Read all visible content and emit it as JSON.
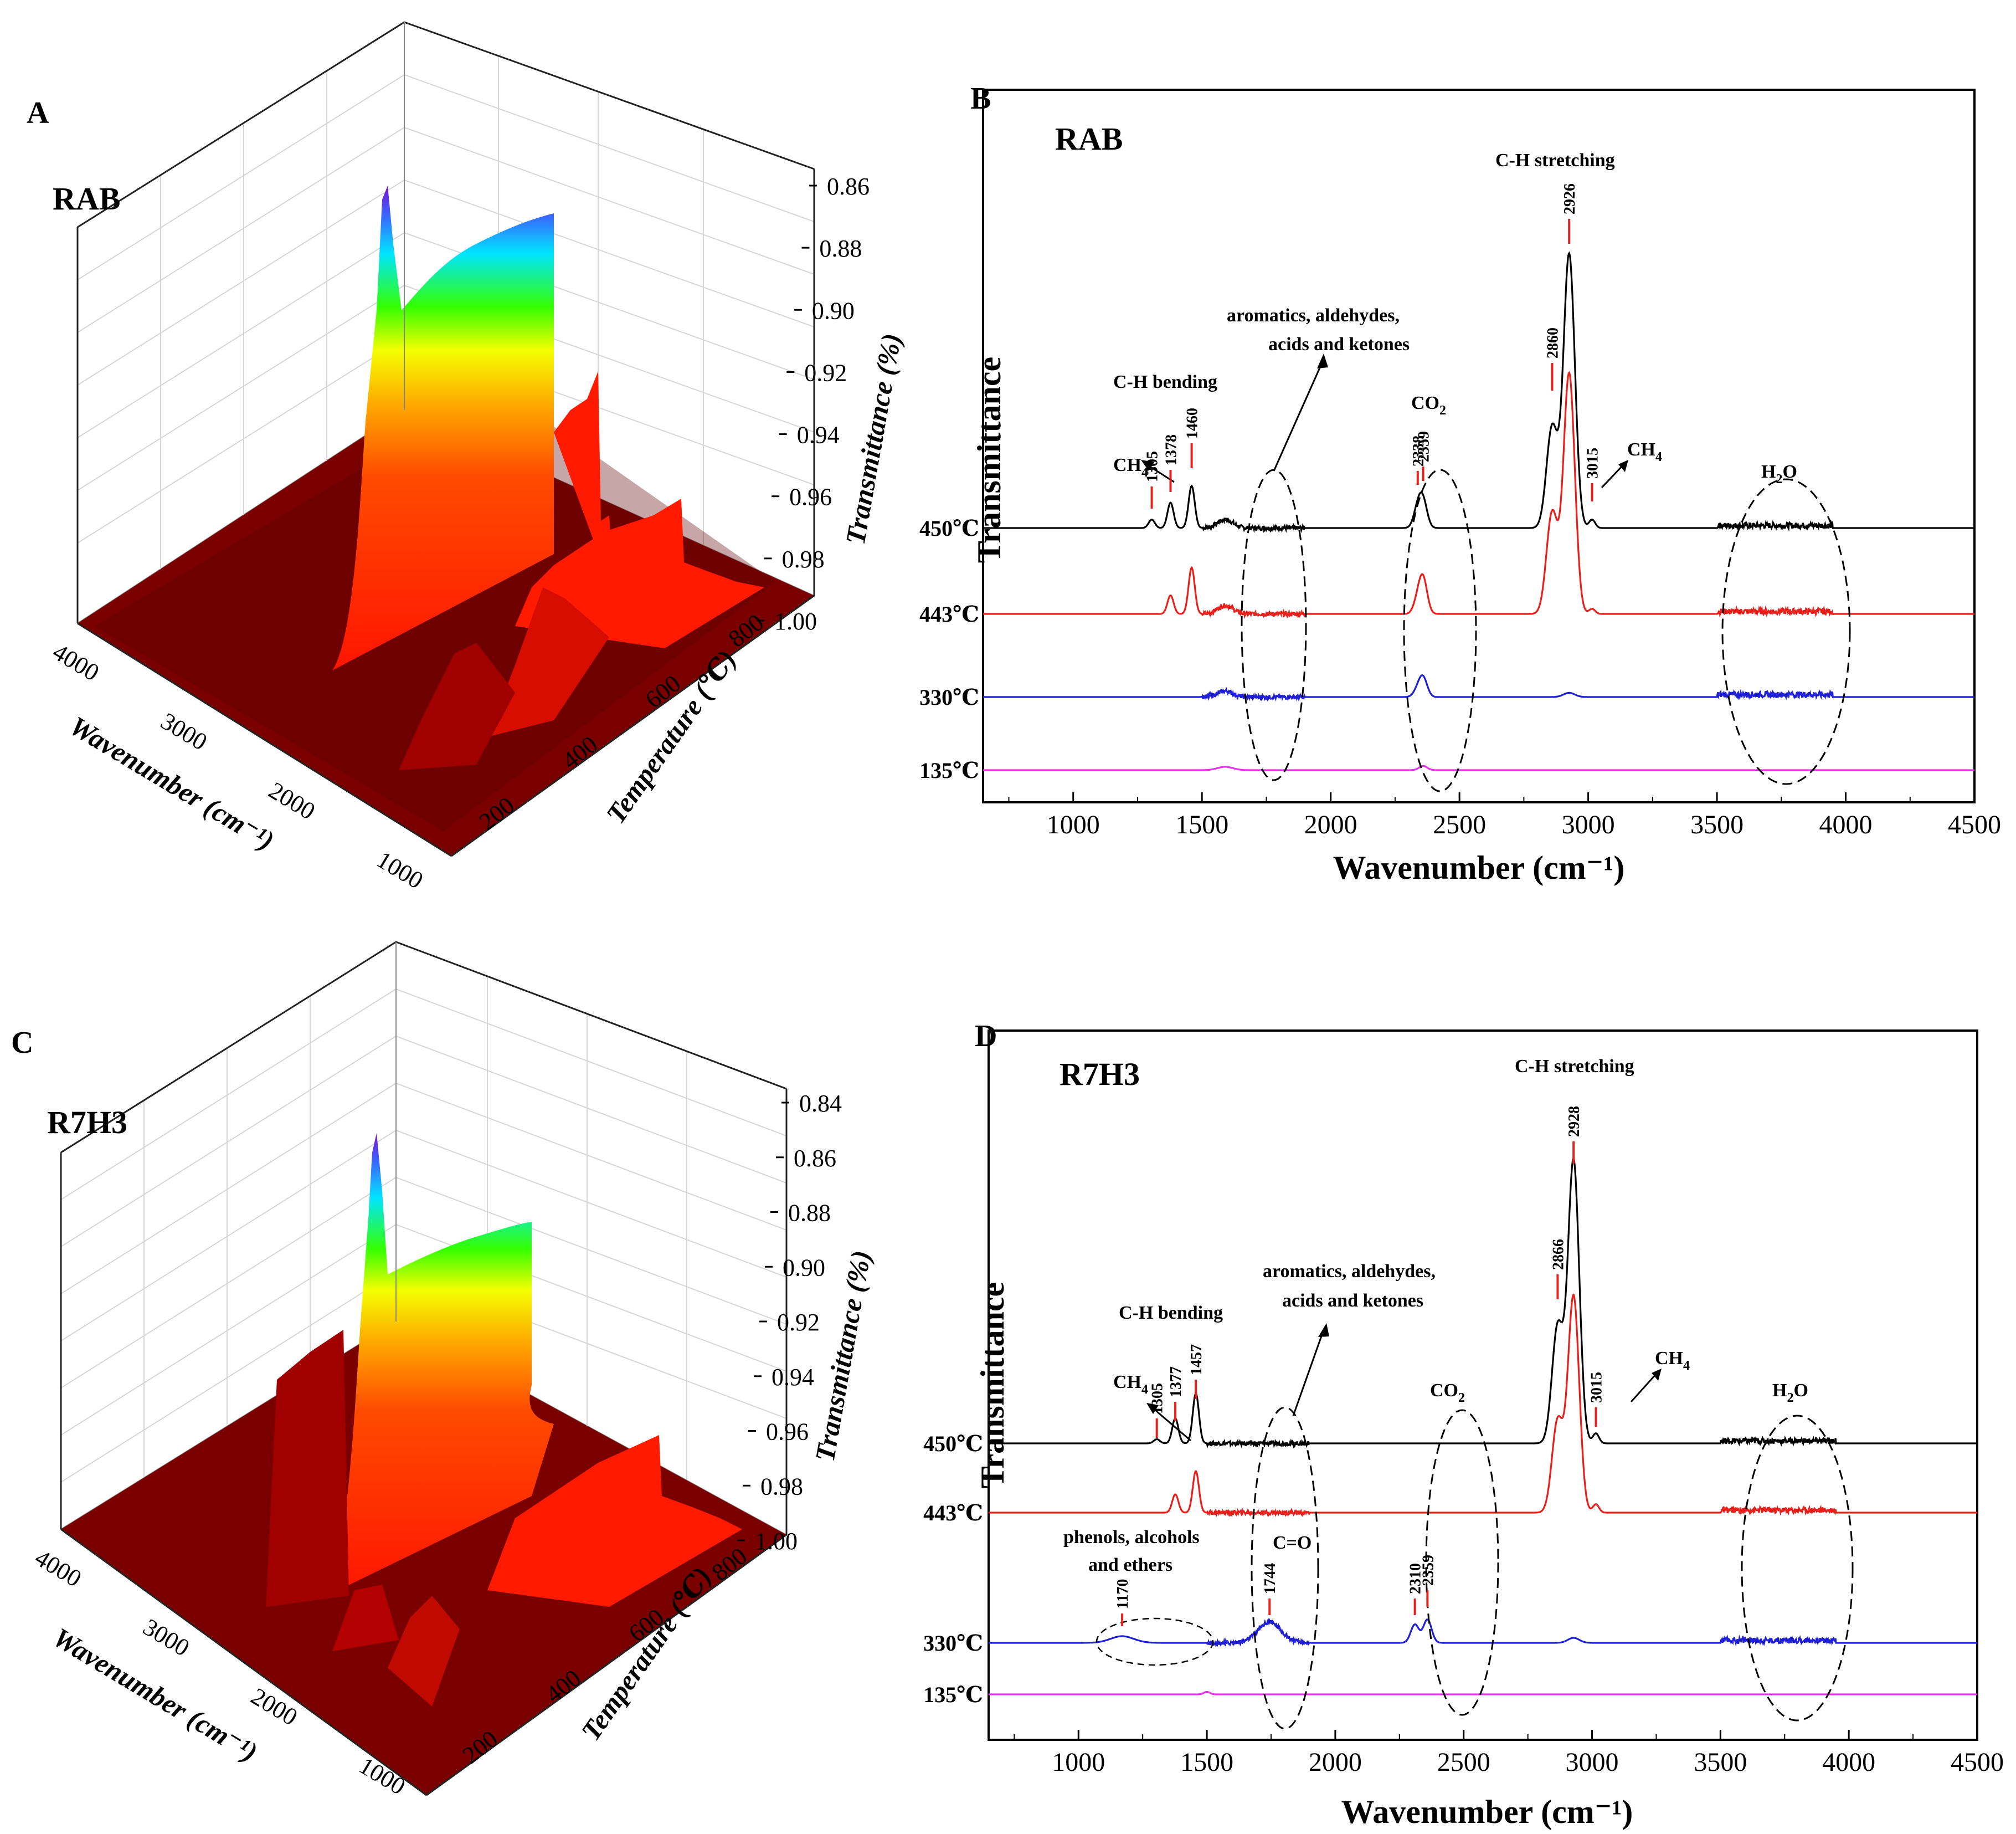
{
  "panels": [
    {
      "letter": "A",
      "sample": "RAB",
      "z_title": "Transmittance (%)",
      "z_ticks": [
        "0.86",
        "0.88",
        "0.90",
        "0.92",
        "0.94",
        "0.96",
        "0.98",
        "1.00"
      ],
      "x_title": "Wavenumber (cm⁻¹)",
      "x_ticks": [
        "4000",
        "3000",
        "2000",
        "1000"
      ],
      "y_title": "Temperature (℃)",
      "y_ticks": [
        "200",
        "400",
        "600",
        "800"
      ]
    },
    {
      "letter": "C",
      "sample": "R7H3",
      "z_title": "Transmittance (%)",
      "z_ticks": [
        "0.84",
        "0.86",
        "0.88",
        "0.90",
        "0.92",
        "0.94",
        "0.96",
        "0.98",
        "1.00"
      ],
      "x_title": "Wavenumber (cm⁻¹)",
      "x_ticks": [
        "4000",
        "3000",
        "2000",
        "1000"
      ],
      "y_title": "Temperature (℃)",
      "y_ticks": [
        "200",
        "400",
        "600",
        "800"
      ]
    }
  ],
  "chart_data": [
    {
      "panel": "B",
      "sample": "RAB",
      "type": "line",
      "xlabel": "Wavenumber (cm⁻¹)",
      "ylabel": "Transmittance",
      "xlim": [
        650,
        4500
      ],
      "x_ticks": [
        1000,
        1500,
        2000,
        2500,
        3000,
        3500,
        4000,
        4500
      ],
      "series": [
        {
          "name": "450℃",
          "color": "#000000",
          "peaks": [
            [
              1305,
              0.1
            ],
            [
              1378,
              0.3
            ],
            [
              1460,
              0.5
            ],
            [
              1590,
              0.1
            ],
            [
              2338,
              0.22
            ],
            [
              2359,
              0.3
            ],
            [
              2860,
              1.2
            ],
            [
              2926,
              3.25
            ],
            [
              3015,
              0.1
            ]
          ]
        },
        {
          "name": "443℃",
          "color": "#e8201b",
          "peaks": [
            [
              1378,
              0.22
            ],
            [
              1460,
              0.55
            ],
            [
              1590,
              0.1
            ],
            [
              2338,
              0.15
            ],
            [
              2359,
              0.4
            ],
            [
              2860,
              1.2
            ],
            [
              2926,
              2.85
            ],
            [
              3015,
              0.06
            ]
          ]
        },
        {
          "name": "330℃",
          "color": "#1f1fd6",
          "peaks": [
            [
              1590,
              0.07
            ],
            [
              2338,
              0.08
            ],
            [
              2359,
              0.22
            ],
            [
              2926,
              0.05
            ]
          ]
        },
        {
          "name": "135℃",
          "color": "#e832e8",
          "peaks": [
            [
              1590,
              0.04
            ],
            [
              2359,
              0.05
            ]
          ]
        }
      ],
      "annotations": {
        "peak_labels": [
          "1305",
          "1378",
          "1460",
          "2338",
          "2359",
          "2860",
          "2926",
          "3015"
        ],
        "ch_bending": "C-H bending",
        "ch_stretching": "C-H stretching",
        "ch4": "CH",
        "co2": "CO",
        "h2o": "H",
        "h2o_tail": "O",
        "sub": "2",
        "sub4": "4",
        "arom1": "aromatics, aldehydes,",
        "arom2": "acids and ketones"
      }
    },
    {
      "panel": "D",
      "sample": "R7H3",
      "type": "line",
      "xlabel": "Wavenumber (cm⁻¹)",
      "ylabel": "Transmittance",
      "xlim": [
        650,
        4500
      ],
      "x_ticks": [
        1000,
        1500,
        2000,
        2500,
        3000,
        3500,
        4000,
        4500
      ],
      "series": [
        {
          "name": "450℃",
          "color": "#000000",
          "peaks": [
            [
              1305,
              0.05
            ],
            [
              1377,
              0.3
            ],
            [
              1457,
              0.6
            ],
            [
              2866,
              1.4
            ],
            [
              2928,
              3.4
            ],
            [
              3015,
              0.12
            ]
          ]
        },
        {
          "name": "443℃",
          "color": "#e8201b",
          "peaks": [
            [
              1377,
              0.22
            ],
            [
              1457,
              0.5
            ],
            [
              2866,
              1.1
            ],
            [
              2928,
              2.6
            ],
            [
              3015,
              0.1
            ]
          ]
        },
        {
          "name": "330℃",
          "color": "#1f1fd6",
          "peaks": [
            [
              1170,
              0.08
            ],
            [
              1744,
              0.25
            ],
            [
              2310,
              0.22
            ],
            [
              2359,
              0.28
            ],
            [
              2928,
              0.06
            ]
          ]
        },
        {
          "name": "135℃",
          "color": "#e832e8",
          "peaks": [
            [
              1500,
              0.03
            ]
          ]
        }
      ],
      "annotations": {
        "peak_labels": [
          "1305",
          "1377",
          "1457",
          "1170",
          "1744",
          "2310",
          "2359",
          "2866",
          "2928",
          "3015"
        ],
        "ch_bending": "C-H bending",
        "ch_stretching": "C-H stretching",
        "ch4": "CH",
        "co2": "CO",
        "h2o": "H",
        "h2o_tail": "O",
        "sub": "2",
        "sub4": "4",
        "arom1": "aromatics, aldehydes,",
        "arom2": "acids and ketones",
        "phen1": "phenols, alcohols",
        "phen2": "and ethers",
        "co": "C=O"
      }
    }
  ],
  "colors": {
    "surface_dark": "#7a0000",
    "surface_red": "#ff1a00",
    "black": "#000000",
    "red": "#e8201b",
    "blue": "#1f1fd6",
    "magenta": "#e832e8"
  }
}
